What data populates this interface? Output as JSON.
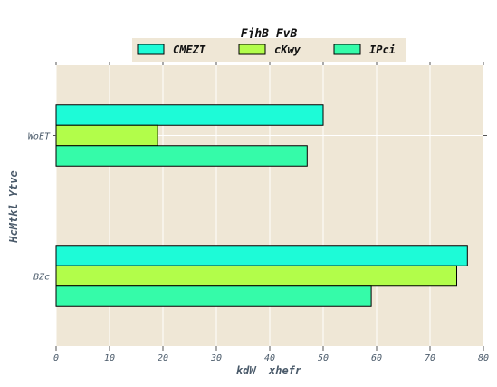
{
  "chart_data": {
    "type": "bar",
    "orientation": "horizontal",
    "title": "FjhB FvB",
    "xlabel": "kdW  xhefr",
    "ylabel": "HcMtkl Ytve",
    "categories": [
      "WoET",
      "BZc"
    ],
    "series": [
      {
        "name": "CMEZT",
        "values": [
          50,
          77
        ],
        "color": "#1dfbd7"
      },
      {
        "name": "cKwy",
        "values": [
          19,
          75
        ],
        "color": "#b2fd4a"
      },
      {
        "name": "IPci",
        "values": [
          47,
          59
        ],
        "color": "#35fba9"
      }
    ],
    "xlim": [
      0,
      80
    ],
    "xticks": [
      0,
      10,
      20,
      30,
      40,
      50,
      60,
      70,
      80
    ],
    "grid": true,
    "legend_position": "top-center",
    "plot_background": "#efe7d6"
  }
}
